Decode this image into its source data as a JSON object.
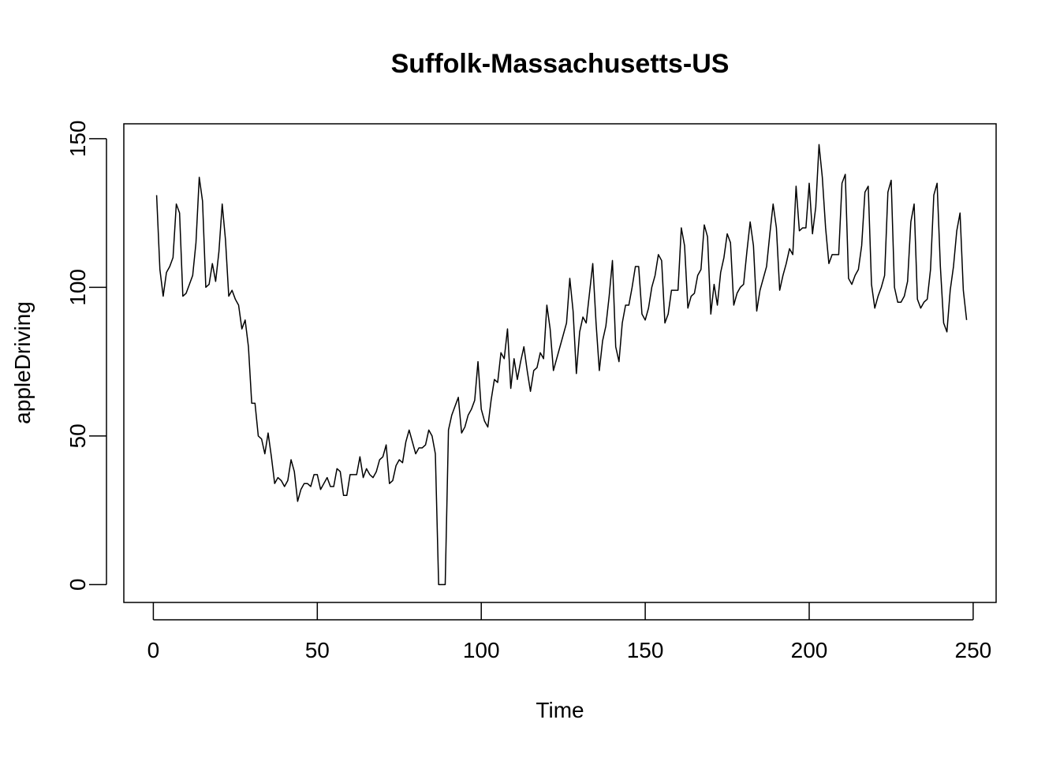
{
  "chart_data": {
    "type": "line",
    "title": "Suffolk-Massachusetts-US",
    "xlabel": "Time",
    "ylabel": "appleDriving",
    "xlim": [
      -9,
      257
    ],
    "ylim": [
      -6,
      155
    ],
    "xticks": [
      0,
      50,
      100,
      150,
      200,
      250
    ],
    "yticks": [
      0,
      50,
      100,
      150
    ],
    "grid": false,
    "line_color": "#000000",
    "series": [
      {
        "x": [
          1,
          2,
          3,
          4,
          5,
          6,
          7,
          8,
          9,
          10,
          11,
          12,
          13,
          14,
          15,
          16,
          17,
          18,
          19,
          20,
          21,
          22,
          23,
          24,
          25,
          26,
          27,
          28,
          29,
          30,
          31,
          32,
          33,
          34,
          35,
          36,
          37,
          38,
          39,
          40,
          41,
          42,
          43,
          44,
          45,
          46,
          47,
          48,
          49,
          50,
          51,
          52,
          53,
          54,
          55,
          56,
          57,
          58,
          59,
          60,
          61,
          62,
          63,
          64,
          65,
          66,
          67,
          68,
          69,
          70,
          71,
          72,
          73,
          74,
          75,
          76,
          77,
          78,
          79,
          80,
          81,
          82,
          83,
          84,
          85,
          86,
          87,
          88,
          89,
          90,
          91,
          92,
          93,
          94,
          95,
          96,
          97,
          98,
          99,
          100,
          101,
          102,
          103,
          104,
          105,
          106,
          107,
          108,
          109,
          110,
          111,
          112,
          113,
          114,
          115,
          116,
          117,
          118,
          119,
          120,
          121,
          122,
          123,
          124,
          125,
          126,
          127,
          128,
          129,
          130,
          131,
          132,
          133,
          134,
          135,
          136,
          137,
          138,
          139,
          140,
          141,
          142,
          143,
          144,
          145,
          146,
          147,
          148,
          149,
          150,
          151,
          152,
          153,
          154,
          155,
          156,
          157,
          158,
          159,
          160,
          161,
          162,
          163,
          164,
          165,
          166,
          167,
          168,
          169,
          170,
          171,
          172,
          173,
          174,
          175,
          176,
          177,
          178,
          179,
          180,
          181,
          182,
          183,
          184,
          185,
          186,
          187,
          188,
          189,
          190,
          191,
          192,
          193,
          194,
          195,
          196,
          197,
          198,
          199,
          200,
          201,
          202,
          203,
          204,
          205,
          206,
          207,
          208,
          209,
          210,
          211,
          212,
          213,
          214,
          215,
          216,
          217,
          218,
          219,
          220,
          221,
          222,
          223,
          224,
          225,
          226,
          227,
          228,
          229,
          230,
          231,
          232,
          233,
          234,
          235,
          236,
          237,
          238,
          239,
          240,
          241,
          242,
          243,
          244,
          245,
          246,
          247,
          248
        ],
        "y": [
          131,
          106,
          97,
          105,
          107,
          110,
          128,
          125,
          97,
          98,
          101,
          104,
          115,
          137,
          129,
          100,
          101,
          108,
          102,
          112,
          128,
          116,
          97,
          99,
          96,
          94,
          86,
          89,
          80,
          61,
          61,
          50,
          49,
          44,
          51,
          43,
          34,
          36,
          35,
          33,
          35,
          42,
          38,
          28,
          32,
          34,
          34,
          33,
          37,
          37,
          32,
          34,
          36,
          33,
          33,
          39,
          38,
          30,
          30,
          37,
          37,
          37,
          43,
          36,
          39,
          37,
          36,
          38,
          42,
          43,
          47,
          34,
          35,
          40,
          42,
          41,
          48,
          52,
          48,
          44,
          46,
          46,
          47,
          52,
          50,
          44,
          0,
          0,
          0,
          52,
          57,
          60,
          63,
          51,
          53,
          57,
          59,
          62,
          75,
          59,
          55,
          53,
          62,
          69,
          68,
          78,
          76,
          86,
          66,
          76,
          69,
          75,
          80,
          72,
          65,
          72,
          73,
          78,
          76,
          94,
          86,
          72,
          76,
          80,
          84,
          88,
          103,
          92,
          71,
          85,
          90,
          88,
          98,
          108,
          88,
          72,
          82,
          87,
          97,
          109,
          80,
          75,
          88,
          94,
          94,
          100,
          107,
          107,
          91,
          89,
          93,
          100,
          104,
          111,
          109,
          88,
          91,
          99,
          99,
          99,
          120,
          114,
          93,
          97,
          98,
          104,
          106,
          121,
          117,
          91,
          101,
          94,
          105,
          110,
          118,
          115,
          94,
          98,
          100,
          101,
          112,
          122,
          114,
          92,
          99,
          103,
          107,
          118,
          128,
          120,
          99,
          104,
          108,
          113,
          111,
          134,
          119,
          120,
          120,
          135,
          118,
          127,
          148,
          137,
          120,
          108,
          111,
          111,
          111,
          135,
          138,
          103,
          101,
          104,
          106,
          114,
          132,
          134,
          101,
          93,
          97,
          100,
          104,
          132,
          136,
          100,
          95,
          95,
          97,
          102,
          122,
          128,
          96,
          93,
          95,
          96,
          106,
          131,
          135,
          107,
          88,
          85,
          99,
          107,
          119,
          125,
          99,
          89
        ]
      }
    ]
  }
}
